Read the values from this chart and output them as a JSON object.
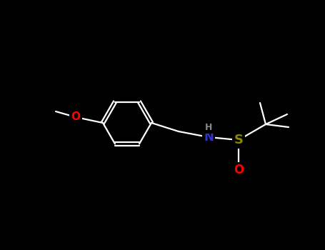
{
  "background_color": "#000000",
  "bond_color": "#ffffff",
  "atom_colors": {
    "O": "#ff0000",
    "N": "#3333cc",
    "S": "#888800",
    "H": "#888888",
    "C": "#ffffff"
  },
  "figsize": [
    4.55,
    3.5
  ],
  "dpi": 100
}
